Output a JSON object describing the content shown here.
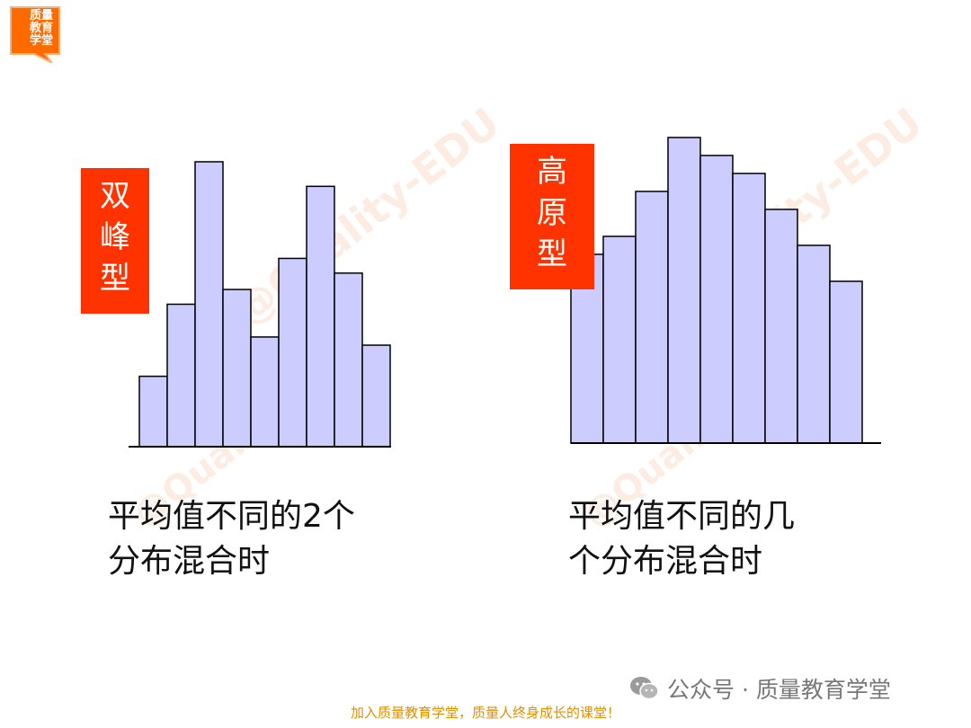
{
  "logo": {
    "lines": [
      "质量",
      "教育",
      "学堂"
    ]
  },
  "watermark": "@Quality-EDU",
  "left_panel": {
    "tag": [
      "双",
      "峰",
      "型"
    ],
    "caption": [
      "平均值不同的2个",
      "分布混合时"
    ]
  },
  "right_panel": {
    "tag": [
      "高",
      "原",
      "型"
    ],
    "caption": [
      "平均值不同的几",
      "个分布混合时"
    ]
  },
  "wechat": {
    "icon": "wechat-icon",
    "text": "公众号 · 质量教育学堂"
  },
  "footer": "加入质量教育学堂，质量人终身成长的课堂！",
  "colors": {
    "bar_fill": "#ccccff",
    "bar_stroke": "#000000",
    "tag_bg": "#ff3300",
    "footer_text": "#e09000"
  },
  "chart_data": [
    {
      "type": "bar",
      "values": [
        4.3,
        8.7,
        17.4,
        9.6,
        6.7,
        11.5,
        15.9,
        10.6,
        6.2
      ],
      "ylim": [
        0,
        17.4
      ],
      "xlabel": "",
      "ylabel": ""
    },
    {
      "type": "bar",
      "values": [
        10.5,
        11.5,
        14.0,
        17.0,
        16.0,
        15.0,
        13.0,
        11.0,
        9.0
      ],
      "ylim": [
        0,
        17.0
      ],
      "xlabel": "",
      "ylabel": ""
    }
  ]
}
